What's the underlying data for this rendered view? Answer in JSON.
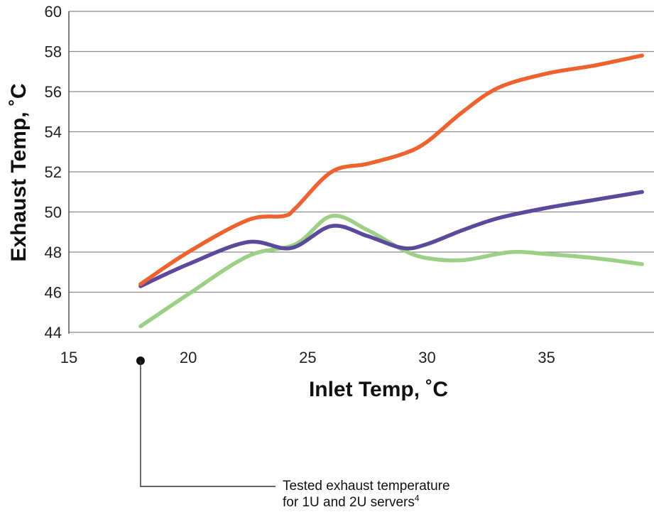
{
  "chart_data": {
    "type": "line",
    "xlabel": "Inlet Temp, ˚C",
    "ylabel": "Exhaust Temp, ˚C",
    "xlim": [
      15,
      39.5
    ],
    "ylim": [
      44,
      60
    ],
    "x_ticks": [
      15,
      20,
      25,
      30,
      35
    ],
    "y_ticks": [
      44,
      46,
      48,
      50,
      52,
      54,
      56,
      58,
      60
    ],
    "grid": "horizontal",
    "legend": "none",
    "series": [
      {
        "color": "#F0622D",
        "x": [
          18,
          20,
          22.5,
          24,
          24.5,
          26,
          27.5,
          29,
          30,
          31.5,
          33,
          35,
          37,
          39
        ],
        "y": [
          46.4,
          48.0,
          49.6,
          49.8,
          50.2,
          52.0,
          52.4,
          52.9,
          53.5,
          55.0,
          56.2,
          56.9,
          57.3,
          57.8
        ]
      },
      {
        "color": "#5B4A9C",
        "x": [
          18,
          20,
          22.5,
          24.3,
          26,
          27.5,
          29,
          30,
          31.5,
          33,
          35,
          37,
          39
        ],
        "y": [
          46.3,
          47.4,
          48.5,
          48.2,
          49.3,
          48.8,
          48.2,
          48.4,
          49.1,
          49.7,
          50.2,
          50.6,
          51.0
        ]
      },
      {
        "color": "#9BD085",
        "x": [
          18,
          20,
          22.5,
          24.5,
          26,
          27.5,
          29,
          30,
          31.5,
          33.5,
          35,
          37,
          39
        ],
        "y": [
          44.3,
          45.9,
          47.8,
          48.4,
          49.8,
          49.1,
          48.1,
          47.7,
          47.6,
          48.0,
          47.9,
          47.7,
          47.4
        ]
      }
    ],
    "annotation": {
      "x": 18,
      "line1": "Tested exhaust temperature",
      "line2": "for 1U and 2U servers",
      "superscript": "4"
    }
  }
}
